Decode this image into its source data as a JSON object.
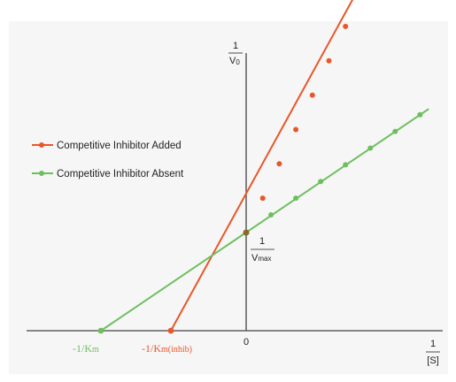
{
  "chart_data": {
    "type": "line",
    "title": "",
    "colors": {
      "inhibited": "#e8572a",
      "absent": "#6dbf5e",
      "axis": "#444444"
    },
    "y_axis_label": {
      "numerator": "1",
      "denominator_main": "V",
      "denominator_sub": "0"
    },
    "x_axis_label": {
      "numerator": "1",
      "denominator": "[S]"
    },
    "origin_label": "0",
    "intercept_label": {
      "numerator": "1",
      "denominator_main": "V",
      "denominator_sub": "max"
    },
    "legend": [
      {
        "name": "Competitive Inhibitor Added",
        "color": "#e8572a"
      },
      {
        "name": "Competitive Inhibitor Absent",
        "color": "#6dbf5e"
      }
    ],
    "x_intercepts": {
      "absent": {
        "main": "-1/K",
        "sub": "m"
      },
      "inhibited": {
        "main": "-1/K",
        "sub": "m(inhib)"
      }
    },
    "series": [
      {
        "name": "Competitive Inhibitor Added",
        "color": "#e8572a",
        "x_intercept": -1.0,
        "points": [
          {
            "x": -1.0,
            "y": 0
          },
          {
            "x": 0.22,
            "y": 1.35
          },
          {
            "x": 0.44,
            "y": 1.7
          },
          {
            "x": 0.66,
            "y": 2.05
          },
          {
            "x": 0.88,
            "y": 2.4
          },
          {
            "x": 1.1,
            "y": 2.75
          },
          {
            "x": 1.32,
            "y": 3.1
          },
          {
            "x": 1.54,
            "y": 3.45
          },
          {
            "x": 1.76,
            "y": 3.8
          },
          {
            "x": 1.98,
            "y": 4.15
          }
        ]
      },
      {
        "name": "Competitive Inhibitor Absent",
        "color": "#6dbf5e",
        "x_intercept": -1.93,
        "points": [
          {
            "x": -1.93,
            "y": 0
          },
          {
            "x": 0.33,
            "y": 1.18
          },
          {
            "x": 0.66,
            "y": 1.35
          },
          {
            "x": 0.99,
            "y": 1.52
          },
          {
            "x": 1.32,
            "y": 1.69
          },
          {
            "x": 1.65,
            "y": 1.86
          },
          {
            "x": 1.98,
            "y": 2.03
          },
          {
            "x": 2.31,
            "y": 2.2
          }
        ]
      }
    ],
    "y_intercept": 1.0,
    "xlim": [
      -2.8,
      2.9
    ],
    "ylim": [
      0,
      4.3
    ]
  }
}
